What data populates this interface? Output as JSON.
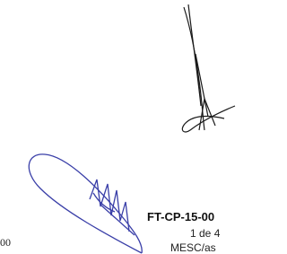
{
  "footer": {
    "left_text": "00",
    "code": "FT-CP-15-00",
    "page": "1 de 4",
    "reference": "MESC/as"
  }
}
